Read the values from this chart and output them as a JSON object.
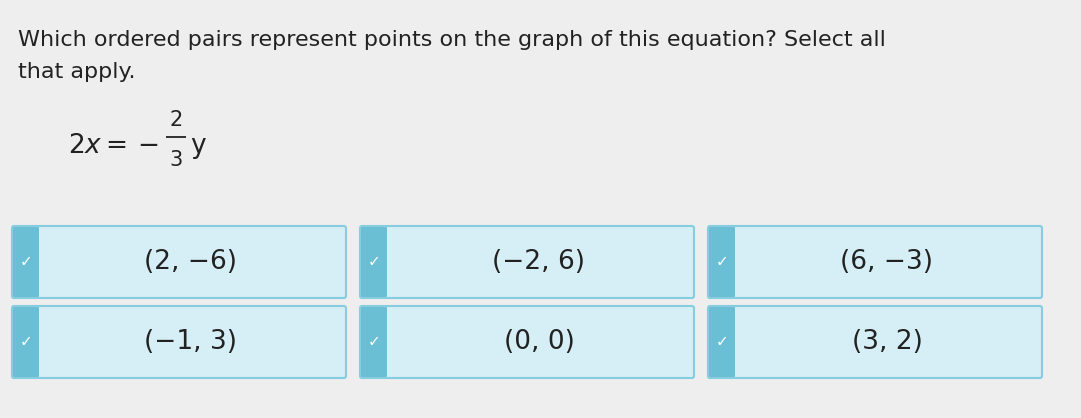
{
  "title_line1": "Which ordered pairs represent points on the graph of this equation? Select all",
  "title_line2": "that apply.",
  "options": [
    "(2, −6)",
    "(−2, 6)",
    "(6, −3)",
    "(−1, 3)",
    "(0, 0)",
    "(3, 2)"
  ],
  "background_color": "#eeeeee",
  "box_bg_color": "#d6eef5",
  "box_accent_color": "#6bbfd4",
  "box_border_color": "#88cce0",
  "check_color": "#55aacc",
  "text_color": "#222222",
  "title_fontsize": 16,
  "option_fontsize": 19,
  "eq_fontsize": 18,
  "fig_width": 10.81,
  "fig_height": 4.18,
  "dpi": 100
}
